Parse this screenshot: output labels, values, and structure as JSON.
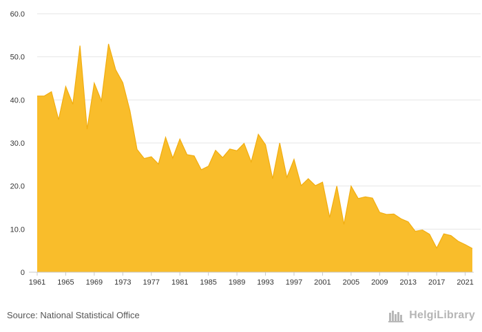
{
  "chart_data": {
    "type": "area",
    "title": "",
    "xlabel": "",
    "ylabel": "",
    "ylim": [
      0,
      60
    ],
    "y_ticks": [
      0,
      10,
      20,
      30,
      40,
      50,
      60
    ],
    "y_tick_labels": [
      "0",
      "10.0",
      "20.0",
      "30.0",
      "40.0",
      "50.0",
      "60.0"
    ],
    "x_tick_labels": [
      "1961",
      "1965",
      "1969",
      "1973",
      "1977",
      "1981",
      "1985",
      "1989",
      "1993",
      "1997",
      "2001",
      "2005",
      "2009",
      "2013",
      "2017",
      "2021"
    ],
    "grid": "horizontal",
    "legend": "none",
    "color": "#f9bd2b",
    "line_color": "#f1ad10",
    "x": [
      1961,
      1962,
      1963,
      1964,
      1965,
      1966,
      1967,
      1968,
      1969,
      1970,
      1971,
      1972,
      1973,
      1974,
      1975,
      1976,
      1977,
      1978,
      1979,
      1980,
      1981,
      1982,
      1983,
      1984,
      1985,
      1986,
      1987,
      1988,
      1989,
      1990,
      1991,
      1992,
      1993,
      1994,
      1995,
      1996,
      1997,
      1998,
      1999,
      2000,
      2001,
      2002,
      2003,
      2004,
      2005,
      2006,
      2007,
      2008,
      2009,
      2010,
      2011,
      2012,
      2013,
      2014,
      2015,
      2016,
      2017,
      2018,
      2019,
      2020,
      2021,
      2022
    ],
    "values": [
      40.9,
      40.9,
      41.9,
      35.4,
      43.1,
      39.0,
      52.6,
      33.2,
      43.9,
      39.8,
      53.0,
      47.0,
      44.0,
      37.5,
      28.5,
      26.4,
      26.8,
      25.1,
      31.3,
      26.5,
      30.9,
      27.3,
      27.0,
      23.8,
      24.6,
      28.3,
      26.6,
      28.6,
      28.2,
      29.9,
      25.6,
      32.0,
      29.6,
      21.7,
      30.0,
      22.0,
      26.2,
      20.1,
      21.7,
      20.1,
      20.9,
      12.7,
      20.0,
      11.1,
      20.0,
      17.1,
      17.5,
      17.2,
      13.9,
      13.4,
      13.5,
      12.4,
      11.7,
      9.5,
      9.8,
      8.8,
      5.6,
      8.9,
      8.5,
      7.2,
      6.4,
      5.5
    ]
  },
  "footer": {
    "source": "Source: National Statistical Office",
    "brand": "HelgiLibrary",
    "brand_icon": "helgi-library-logo-icon"
  }
}
